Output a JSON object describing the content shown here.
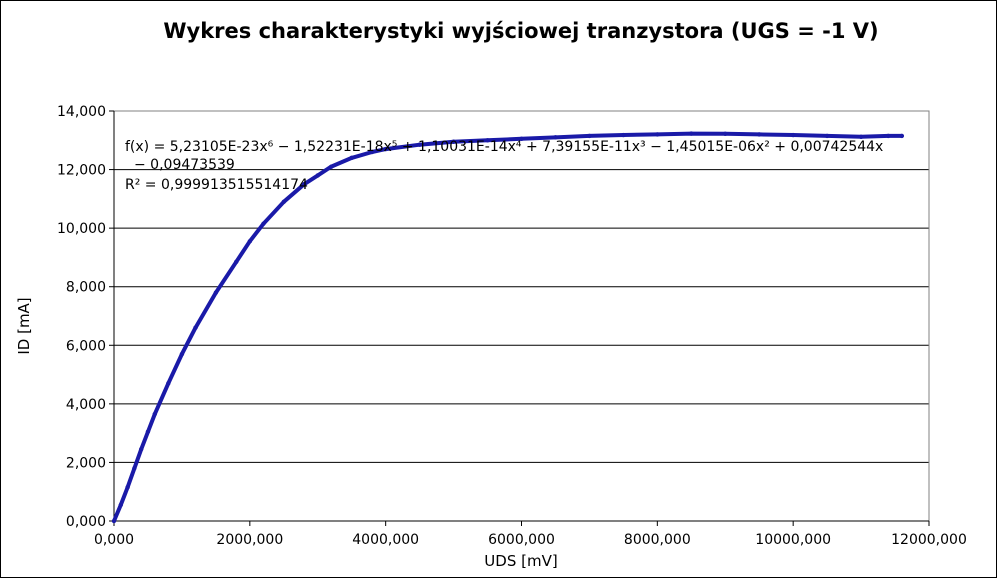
{
  "chart_data": {
    "type": "scatter",
    "title": "Wykres charakterystyki wyjściowej tranzystora (UGS = -1 V)",
    "xlabel": "UDS [mV]",
    "ylabel": "ID [mA]",
    "xlim": [
      0,
      12000000
    ],
    "ylim": [
      0,
      14000
    ],
    "x_ticks": [
      "0,000",
      "2000,000",
      "4000,000",
      "6000,000",
      "8000,000",
      "10000,000",
      "12000,000"
    ],
    "y_ticks": [
      "0,000",
      "2,000",
      "4,000",
      "6,000",
      "8,000",
      "10,000",
      "12,000",
      "14,000"
    ],
    "grid": {
      "horizontal": true,
      "vertical": false
    },
    "series": [
      {
        "color": "#1a1aa8",
        "x": [
          0,
          100000,
          200000,
          300000,
          400000,
          500000,
          600000,
          800000,
          1000000,
          1200000,
          1500000,
          1800000,
          2000000,
          2200000,
          2500000,
          2800000,
          3000000,
          3200000,
          3500000,
          3800000,
          4000000,
          4500000,
          5000000,
          5500000,
          6000000,
          6500000,
          7000000,
          7500000,
          8000000,
          8500000,
          9000000,
          9500000,
          10000000,
          10500000,
          11000000,
          11400000,
          11600000
        ],
        "y": [
          0,
          550,
          1150,
          1800,
          2450,
          3050,
          3650,
          4700,
          5700,
          6600,
          7800,
          8850,
          9550,
          10150,
          10900,
          11500,
          11800,
          12100,
          12400,
          12600,
          12700,
          12850,
          12950,
          13000,
          13050,
          13100,
          13150,
          13180,
          13200,
          13230,
          13220,
          13200,
          13180,
          13150,
          13120,
          13150,
          13150
        ]
      }
    ],
    "trendline": {
      "equation_line1": "f(x) = 5,23105E-23x⁶ − 1,52231E-18x⁵ + 1,10031E-14x⁴ + 7,39155E-11x³ − 1,45015E-06x² + 0,00742544x",
      "equation_line2": "− 0,09473539",
      "r_squared": "R² = 0,999913515514174"
    }
  }
}
